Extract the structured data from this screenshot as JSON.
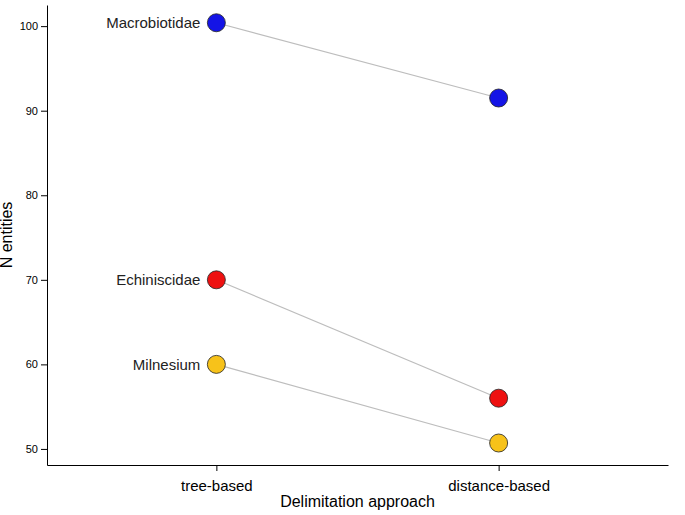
{
  "chart_data": {
    "type": "line",
    "marker": "circle",
    "x_label": "Delimitation approach",
    "y_label": "N entities",
    "categories": [
      "tree-based",
      "distance-based"
    ],
    "series": [
      {
        "name": "Macrobiotidae",
        "color": "#1414e6",
        "values": [
          100.4,
          91.5
        ]
      },
      {
        "name": "Echiniscidae",
        "color": "#ee1111",
        "values": [
          70,
          56
        ]
      },
      {
        "name": "Milnesium",
        "color": "#f7c21a",
        "values": [
          60,
          50.7
        ]
      }
    ],
    "ylim": [
      48.1,
      102.5
    ],
    "yticks": [
      50,
      60,
      70,
      80,
      90,
      100
    ],
    "grid": false
  }
}
